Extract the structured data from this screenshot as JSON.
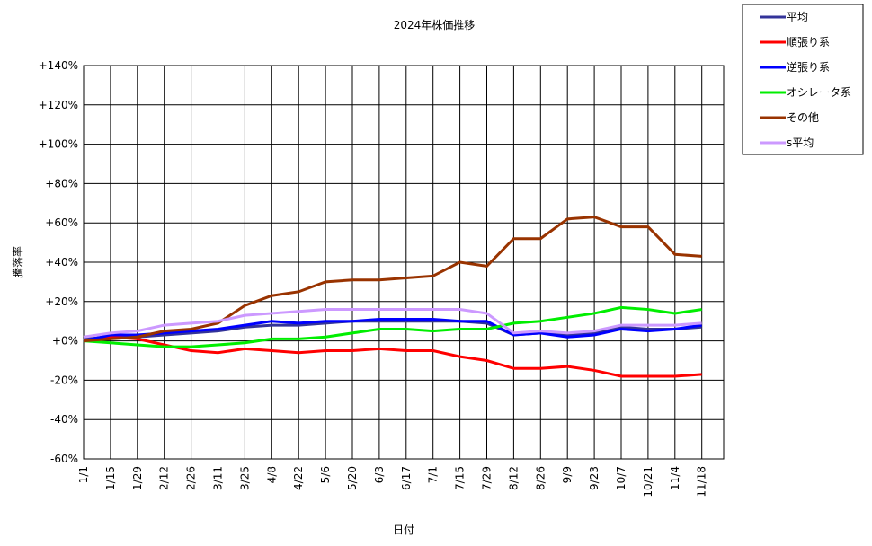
{
  "chart_data": {
    "type": "line",
    "title": "2024年株価推移",
    "x_label": "日付",
    "y_label": "騰落率",
    "categories": [
      "1/1",
      "1/15",
      "1/29",
      "2/12",
      "2/26",
      "3/11",
      "3/25",
      "4/8",
      "4/22",
      "5/6",
      "5/20",
      "6/3",
      "6/17",
      "7/1",
      "7/15",
      "7/29",
      "8/12",
      "8/26",
      "9/9",
      "9/23",
      "10/7",
      "10/21",
      "11/4",
      "11/18"
    ],
    "ylim": [
      -60,
      140
    ],
    "yticks": [
      {
        "value": -60,
        "label": "-60%"
      },
      {
        "value": -40,
        "label": "-40%"
      },
      {
        "value": -20,
        "label": "-20%"
      },
      {
        "value": 0,
        "label": "+0%"
      },
      {
        "value": 20,
        "label": "+20%"
      },
      {
        "value": 40,
        "label": "+40%"
      },
      {
        "value": 60,
        "label": "+60%"
      },
      {
        "value": 80,
        "label": "+80%"
      },
      {
        "value": 100,
        "label": "+100%"
      },
      {
        "value": 120,
        "label": "+120%"
      },
      {
        "value": 140,
        "label": "+140%"
      }
    ],
    "grid": true,
    "series": [
      {
        "name": "平均",
        "color": "#333399",
        "values": [
          1,
          2,
          2,
          3,
          4,
          5,
          7,
          8,
          8,
          9,
          10,
          10,
          10,
          10,
          10,
          9,
          3,
          4,
          3,
          4,
          7,
          6,
          6,
          7
        ]
      },
      {
        "name": "順張り系",
        "color": "#ff0000",
        "values": [
          0,
          2,
          1,
          -2,
          -5,
          -6,
          -4,
          -5,
          -6,
          -5,
          -5,
          -4,
          -5,
          -5,
          -8,
          -10,
          -14,
          -14,
          -13,
          -15,
          -18,
          -18,
          -18,
          -17
        ]
      },
      {
        "name": "逆張り系",
        "color": "#0000ff",
        "values": [
          0,
          3,
          3,
          4,
          5,
          6,
          8,
          10,
          9,
          10,
          10,
          11,
          11,
          11,
          10,
          10,
          3,
          4,
          2,
          3,
          6,
          5,
          6,
          8
        ]
      },
      {
        "name": "オシレータ系",
        "color": "#00ee00",
        "values": [
          0,
          -1,
          -2,
          -3,
          -3,
          -2,
          -1,
          1,
          1,
          2,
          4,
          6,
          6,
          5,
          6,
          6,
          9,
          10,
          12,
          14,
          17,
          16,
          14,
          16
        ]
      },
      {
        "name": "その他",
        "color": "#993300",
        "values": [
          0,
          1,
          2,
          5,
          6,
          9,
          18,
          23,
          25,
          30,
          31,
          31,
          32,
          33,
          40,
          38,
          52,
          52,
          62,
          63,
          58,
          58,
          44,
          43
        ]
      },
      {
        "name": "s平均",
        "color": "#cc99ff",
        "values": [
          2,
          4,
          5,
          8,
          9,
          10,
          13,
          14,
          15,
          16,
          16,
          16,
          16,
          16,
          16,
          14,
          4,
          5,
          4,
          5,
          8,
          8,
          8,
          9
        ]
      }
    ]
  }
}
